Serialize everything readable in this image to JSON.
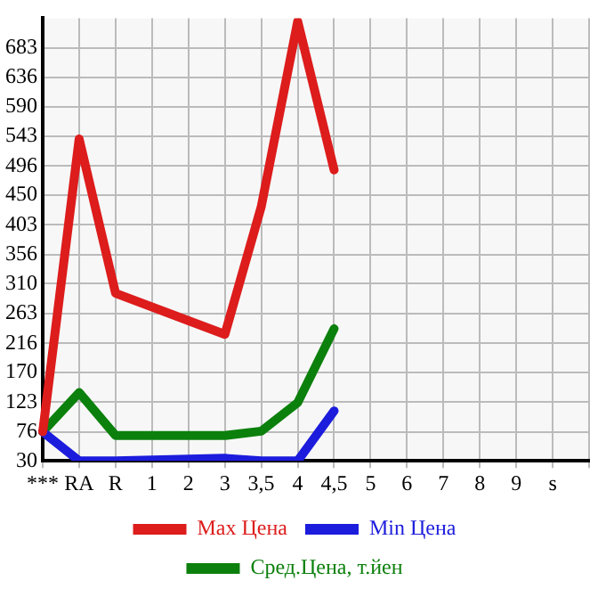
{
  "chart_data": {
    "type": "line",
    "categories": [
      "***",
      "RA",
      "R",
      "1",
      "2",
      "3",
      "3,5",
      "4",
      "4,5",
      "5",
      "6",
      "7",
      "8",
      "9",
      "s",
      null
    ],
    "series": [
      {
        "name": "Max Цена",
        "color": "#dd1c1c",
        "values": [
          76,
          539,
          295,
          null,
          null,
          230,
          432,
          725,
          490,
          null,
          null,
          null,
          null,
          null,
          null,
          null
        ]
      },
      {
        "name": "Min Цена",
        "color": "#1c1cdd",
        "values": [
          76,
          30,
          30,
          null,
          null,
          34,
          30,
          30,
          109,
          null,
          null,
          null,
          null,
          null,
          null,
          null
        ]
      },
      {
        "name": "Сред.Цена, т.йен",
        "color": "#0c800c",
        "values": [
          76,
          138,
          70,
          70,
          70,
          70,
          77,
          122,
          239,
          null,
          null,
          null,
          null,
          null,
          null,
          null
        ]
      }
    ],
    "ylim": [
      30,
      730
    ],
    "yticks": [
      30,
      76,
      123,
      170,
      216,
      263,
      310,
      356,
      403,
      450,
      496,
      543,
      590,
      636,
      683
    ],
    "grid": true,
    "legend": "bottom",
    "marker": "none",
    "line_style": "solid"
  }
}
